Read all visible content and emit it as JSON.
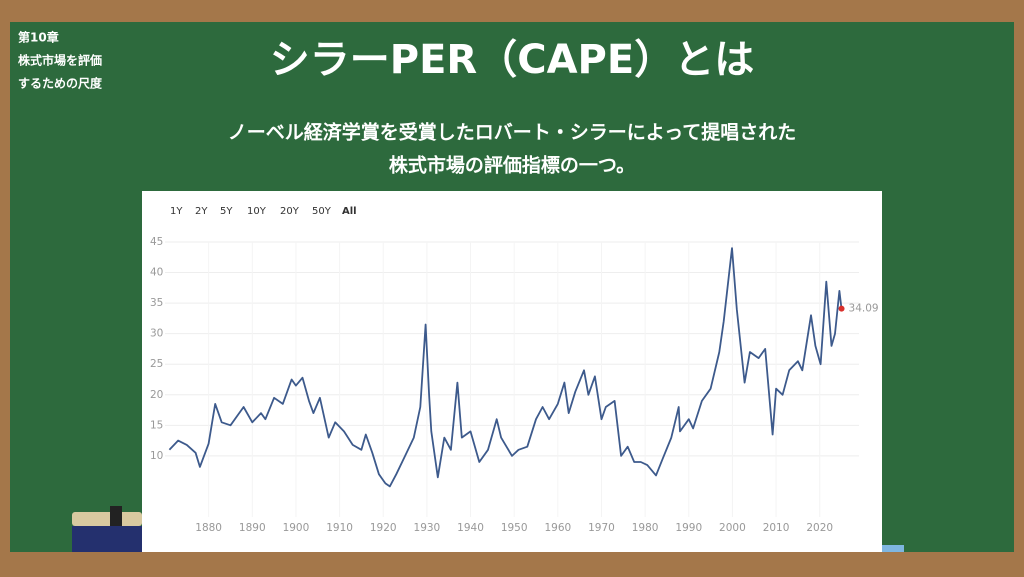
{
  "header": {
    "chapter": [
      "第10章",
      "株式市場を評価",
      "するための尺度"
    ],
    "title": "シラーPER（CAPE）とは",
    "subtitle": [
      "ノーベル経済学賞を受賞したロバート・シラーによって提唱された",
      "株式市場の評価指標の一つ。"
    ]
  },
  "chart_data": {
    "type": "line",
    "range_buttons": [
      "1Y",
      "2Y",
      "5Y",
      "10Y",
      "20Y",
      "50Y",
      "All"
    ],
    "active_range": "All",
    "x": [
      1871,
      1873,
      1875,
      1877,
      1878,
      1880,
      1881.5,
      1883,
      1885,
      1887,
      1888,
      1890,
      1892,
      1893,
      1895,
      1897,
      1899,
      1900,
      1901.5,
      1903,
      1904,
      1905.5,
      1907.5,
      1909,
      1911,
      1913,
      1915,
      1916,
      1917.5,
      1919,
      1920.5,
      1921.5,
      1923,
      1925,
      1927,
      1928.5,
      1929.7,
      1930.5,
      1931,
      1932.5,
      1934,
      1935.5,
      1937,
      1938,
      1940,
      1942,
      1944,
      1946,
      1947,
      1949.5,
      1951,
      1953,
      1955,
      1956.5,
      1958,
      1960,
      1961.5,
      1962.5,
      1964,
      1966,
      1967,
      1968.5,
      1970,
      1971,
      1973,
      1974.5,
      1976,
      1977.5,
      1979,
      1980.5,
      1982.5,
      1984,
      1986,
      1987.7,
      1988,
      1990,
      1991,
      1993,
      1995,
      1997,
      1998,
      1999.9,
      2001,
      2002.8,
      2004,
      2006,
      2007.5,
      2009.2,
      2010,
      2011.5,
      2013,
      2015,
      2016,
      2018,
      2019,
      2020.2,
      2021.5,
      2022.7,
      2023.5,
      2024.5,
      2025
    ],
    "series": [
      {
        "color": "#3d5a8c",
        "values": [
          11,
          12.5,
          11.8,
          10.5,
          8.2,
          12,
          18.5,
          15.5,
          15,
          17,
          18,
          15.5,
          17,
          16,
          19.5,
          18.5,
          22.5,
          21.5,
          22.8,
          19,
          17,
          19.5,
          13,
          15.5,
          14,
          11.8,
          11,
          13.5,
          10.5,
          7,
          5.5,
          5,
          7,
          10,
          13,
          18,
          31.5,
          20,
          14,
          6.5,
          13,
          11,
          22,
          13,
          14,
          9,
          11,
          16,
          13,
          10,
          11,
          11.5,
          16,
          18,
          16,
          18.5,
          22,
          17,
          20.5,
          24,
          20,
          23,
          16,
          18,
          19,
          10,
          11.5,
          9,
          9,
          8.5,
          6.8,
          9.5,
          13,
          18,
          14,
          16,
          14.5,
          19,
          21,
          27,
          32,
          44,
          34,
          22,
          27,
          26,
          27.5,
          13.5,
          21,
          20,
          24,
          25.5,
          24,
          33,
          28,
          25,
          38.5,
          28,
          30,
          37,
          34.09
        ]
      }
    ],
    "last_point_color": "#d9302c",
    "xlim": [
      1870,
      2029
    ],
    "xticks": [
      1880,
      1890,
      1900,
      1910,
      1920,
      1930,
      1940,
      1950,
      1960,
      1970,
      1980,
      1990,
      2000,
      2010,
      2020
    ],
    "ylim": [
      0,
      45
    ],
    "yticks": [
      10,
      15,
      20,
      25,
      30,
      35,
      40,
      45
    ],
    "grid": true
  }
}
